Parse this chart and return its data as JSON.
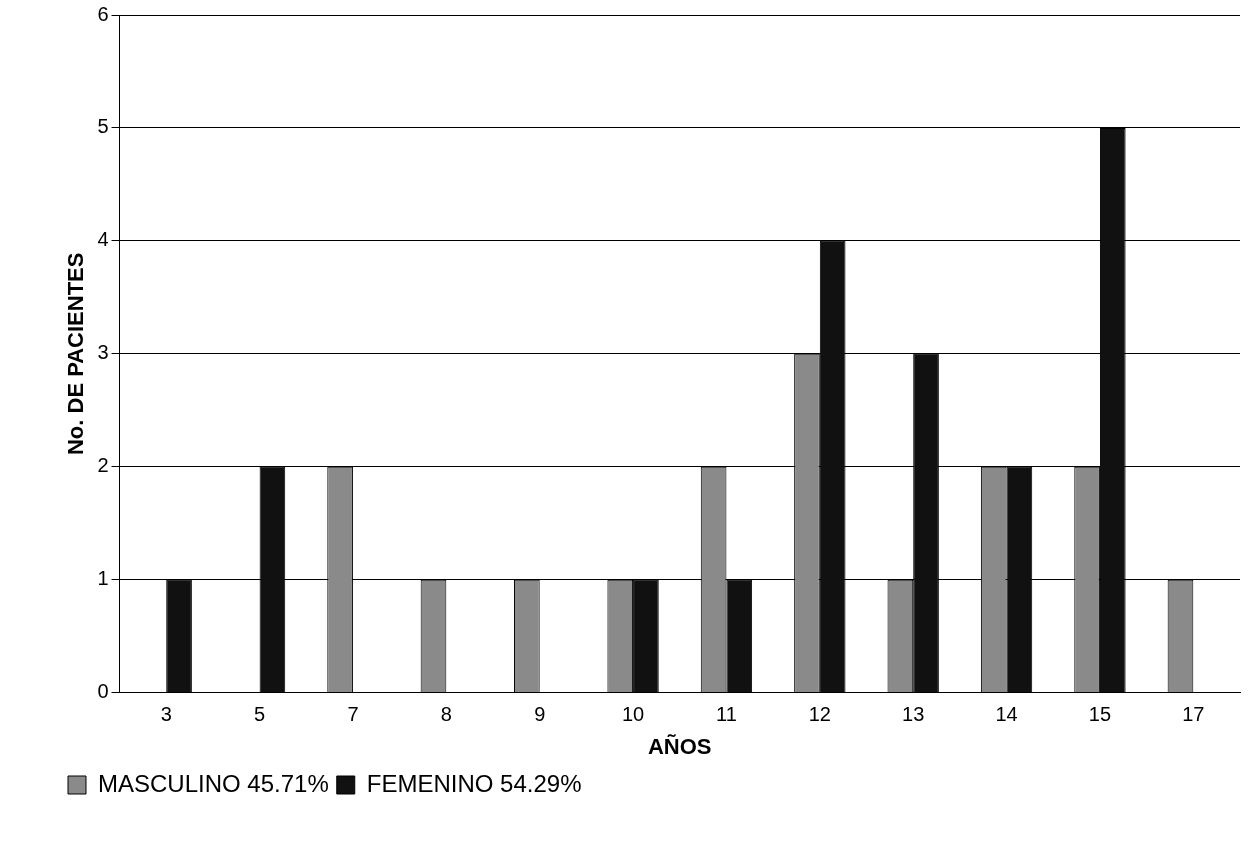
{
  "chart_data": {
    "type": "bar",
    "xlabel": "AÑOS",
    "ylabel": "No. DE PACIENTES",
    "categories": [
      "3",
      "5",
      "7",
      "8",
      "9",
      "10",
      "11",
      "12",
      "13",
      "14",
      "15",
      "17"
    ],
    "series": [
      {
        "name": "MASCULINO 45.71%",
        "color": "#8a8a8a",
        "values": [
          0,
          0,
          2,
          1,
          1,
          1,
          2,
          3,
          1,
          2,
          2,
          1
        ]
      },
      {
        "name": "FEMENINO 54.29%",
        "color": "#111111",
        "values": [
          1,
          2,
          0,
          0,
          0,
          1,
          1,
          4,
          3,
          2,
          5,
          0
        ]
      }
    ],
    "ylim": [
      0,
      6
    ],
    "yticks": [
      0,
      1,
      2,
      3,
      4,
      5,
      6
    ],
    "grid": "y",
    "legend": "bottom left"
  }
}
